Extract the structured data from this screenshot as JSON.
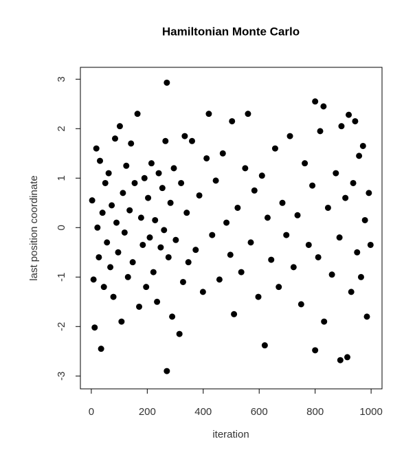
{
  "chart_data": {
    "type": "scatter",
    "title": "Hamiltonian Monte Carlo",
    "x_label": "iteration",
    "y_label": "last position coordinate",
    "xlim": [
      -39,
      1039
    ],
    "ylim": [
      -3.26,
      3.24
    ],
    "xticks": [
      0,
      200,
      400,
      600,
      800,
      1000
    ],
    "yticks": [
      -3,
      -2,
      -1,
      0,
      1,
      2,
      3
    ],
    "color": "#000000",
    "x": [
      3,
      8,
      12,
      18,
      22,
      27,
      31,
      35,
      40,
      45,
      50,
      56,
      62,
      68,
      73,
      79,
      85,
      90,
      96,
      102,
      108,
      113,
      119,
      125,
      131,
      137,
      142,
      148,
      155,
      165,
      171,
      178,
      184,
      190,
      196,
      203,
      209,
      215,
      222,
      228,
      235,
      241,
      248,
      254,
      260,
      265,
      270,
      270,
      276,
      283,
      289,
      295,
      302,
      315,
      321,
      328,
      334,
      341,
      347,
      360,
      373,
      386,
      399,
      412,
      420,
      432,
      445,
      458,
      470,
      483,
      497,
      503,
      510,
      523,
      536,
      550,
      560,
      570,
      583,
      597,
      610,
      620,
      630,
      643,
      657,
      670,
      683,
      697,
      710,
      723,
      737,
      750,
      763,
      777,
      790,
      800,
      800,
      811,
      818,
      830,
      832,
      846,
      860,
      874,
      887,
      890,
      894,
      908,
      915,
      920,
      929,
      936,
      943,
      950,
      957,
      964,
      971,
      978,
      985,
      992,
      998
    ],
    "values": [
      0.55,
      -1.05,
      -2.02,
      1.6,
      0.0,
      -0.6,
      1.35,
      -2.45,
      0.3,
      -1.2,
      0.9,
      -0.3,
      1.1,
      -0.8,
      0.45,
      -1.4,
      1.8,
      0.1,
      -0.5,
      2.05,
      -1.9,
      0.7,
      -0.1,
      1.25,
      -1.0,
      0.35,
      1.7,
      -0.7,
      0.9,
      2.3,
      -1.6,
      0.2,
      -0.35,
      1.0,
      -1.2,
      0.6,
      -0.2,
      1.3,
      -0.9,
      0.15,
      -1.5,
      1.1,
      -0.4,
      0.8,
      -0.05,
      1.75,
      2.93,
      -2.9,
      -0.6,
      0.5,
      -1.8,
      1.2,
      -0.25,
      -2.15,
      0.9,
      -1.1,
      1.85,
      0.3,
      -0.7,
      1.75,
      -0.45,
      0.65,
      -1.3,
      1.4,
      2.3,
      -0.15,
      0.95,
      -1.05,
      1.5,
      0.1,
      -0.55,
      2.15,
      -1.75,
      0.4,
      -0.9,
      1.2,
      2.3,
      -0.3,
      0.75,
      -1.4,
      1.05,
      -2.38,
      0.2,
      -0.65,
      1.6,
      -1.2,
      0.5,
      -0.15,
      1.85,
      -0.8,
      0.25,
      -1.55,
      1.3,
      -0.35,
      0.85,
      2.55,
      -2.48,
      -0.6,
      1.95,
      2.45,
      -1.9,
      0.4,
      -0.95,
      1.1,
      -0.2,
      -2.68,
      2.05,
      0.6,
      -2.62,
      2.28,
      -1.3,
      0.9,
      2.15,
      -0.5,
      1.45,
      -1.0,
      1.65,
      0.15,
      -1.8,
      0.7,
      -0.35
    ]
  }
}
